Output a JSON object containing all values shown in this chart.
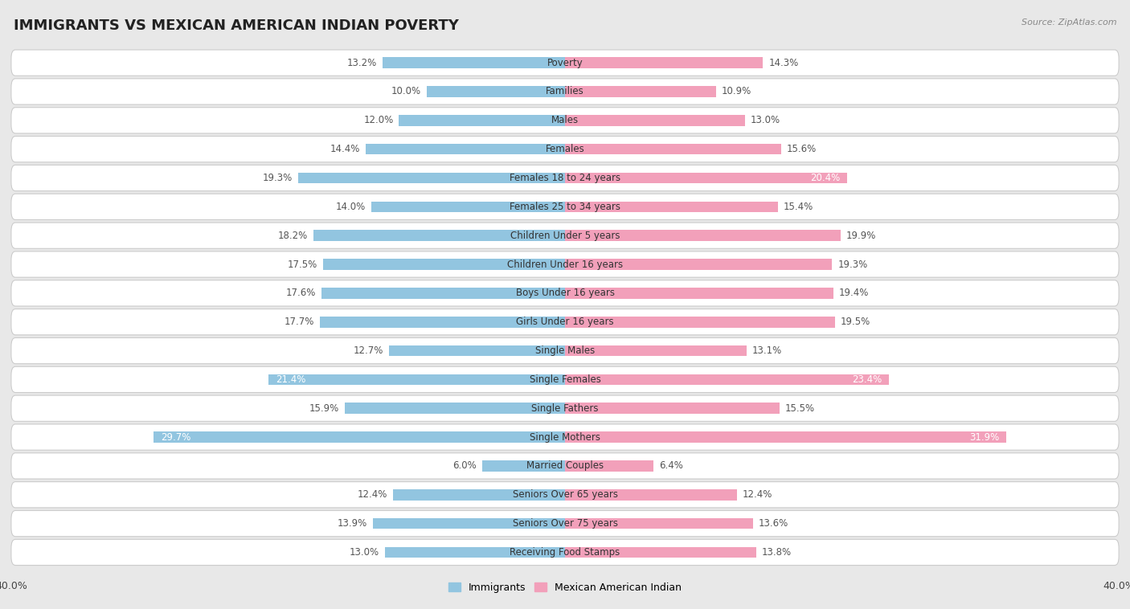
{
  "title": "IMMIGRANTS VS MEXICAN AMERICAN INDIAN POVERTY",
  "source": "Source: ZipAtlas.com",
  "categories": [
    "Poverty",
    "Families",
    "Males",
    "Females",
    "Females 18 to 24 years",
    "Females 25 to 34 years",
    "Children Under 5 years",
    "Children Under 16 years",
    "Boys Under 16 years",
    "Girls Under 16 years",
    "Single Males",
    "Single Females",
    "Single Fathers",
    "Single Mothers",
    "Married Couples",
    "Seniors Over 65 years",
    "Seniors Over 75 years",
    "Receiving Food Stamps"
  ],
  "immigrants": [
    13.2,
    10.0,
    12.0,
    14.4,
    19.3,
    14.0,
    18.2,
    17.5,
    17.6,
    17.7,
    12.7,
    21.4,
    15.9,
    29.7,
    6.0,
    12.4,
    13.9,
    13.0
  ],
  "mexican_american_indian": [
    14.3,
    10.9,
    13.0,
    15.6,
    20.4,
    15.4,
    19.9,
    19.3,
    19.4,
    19.5,
    13.1,
    23.4,
    15.5,
    31.9,
    6.4,
    12.4,
    13.6,
    13.8
  ],
  "immigrant_color": "#92C5E0",
  "mexican_color": "#F2A0BA",
  "immigrant_color_dark": "#5A9EC0",
  "mexican_color_dark": "#E06090",
  "page_bg": "#e8e8e8",
  "row_bg": "#ffffff",
  "row_border": "#cccccc",
  "xlim": 40.0,
  "title_fontsize": 13,
  "label_fontsize": 8.5,
  "value_fontsize": 8.5
}
